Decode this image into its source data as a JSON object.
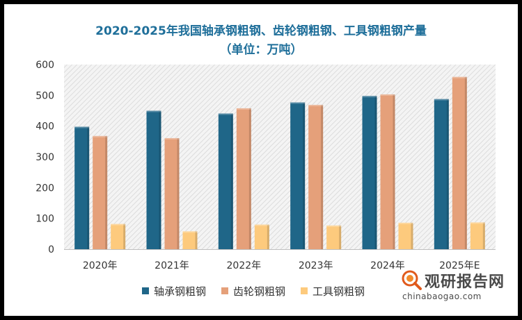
{
  "chart_data": {
    "type": "bar",
    "title_line1": "2020-2025年我国轴承钢粗钢、齿轮钢粗钢、工具钢粗钢产量",
    "title_line2": "（单位：万吨）",
    "categories": [
      "2020年",
      "2021年",
      "2022年",
      "2023年",
      "2024年",
      "2025年E"
    ],
    "series": [
      {
        "name": "轴承钢粗钢",
        "color": "#1f6688",
        "values": [
          398,
          450,
          441,
          477,
          498,
          488
        ]
      },
      {
        "name": "齿轮钢粗钢",
        "color": "#e5a07a",
        "values": [
          368,
          361,
          458,
          469,
          503,
          560
        ]
      },
      {
        "name": "工具钢粗钢",
        "color": "#fdca7d",
        "values": [
          82,
          58,
          80,
          77,
          86,
          87
        ]
      }
    ],
    "ylim": [
      0,
      600
    ],
    "yticks": [
      0,
      100,
      200,
      300,
      400,
      500,
      600
    ],
    "grid": false,
    "legend_position": "bottom"
  },
  "watermark": {
    "text_cn": "观研报告网",
    "text_en": "chinabaogao.com",
    "icon": "magnifier-logo-icon"
  }
}
